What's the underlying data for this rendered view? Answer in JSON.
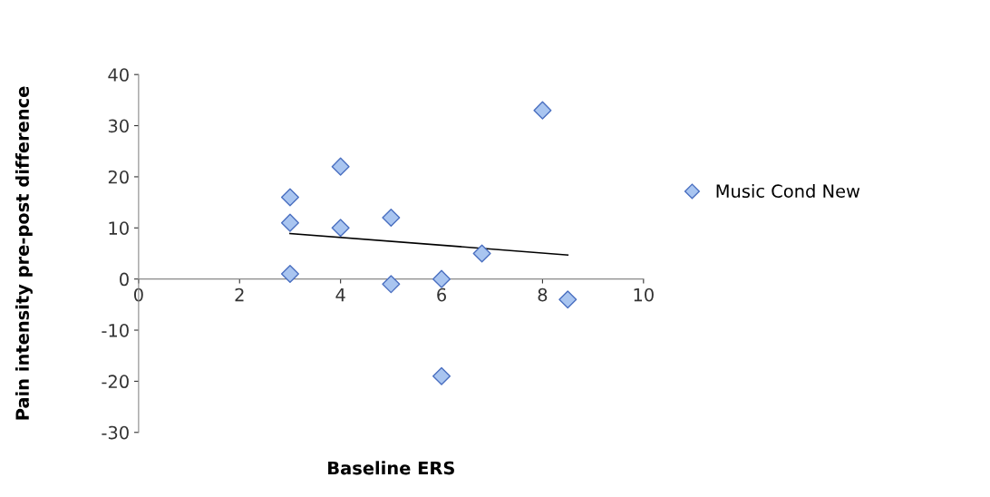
{
  "chart_data": {
    "type": "scatter",
    "xlabel": "Baseline ERS",
    "ylabel": "Pain intensity pre-post difference",
    "xlim": [
      0,
      10
    ],
    "xticks": [
      0,
      2,
      4,
      6,
      8,
      10
    ],
    "ylim": [
      -30,
      40
    ],
    "yticks": [
      -30,
      -20,
      -10,
      0,
      10,
      20,
      30,
      40
    ],
    "series": [
      {
        "name": "Music Cond New",
        "marker": "diamond",
        "color": "#a9c5f0",
        "x": [
          3,
          3,
          3,
          4,
          4,
          5,
          5,
          6,
          6,
          6.8,
          8,
          8.5
        ],
        "values": [
          16,
          11,
          1,
          22,
          10,
          12,
          -1,
          0,
          -19,
          5,
          33,
          -4
        ]
      },
      {
        "type": "line",
        "marker": "none",
        "color": "#000000",
        "x": [
          3,
          8.5
        ],
        "values": [
          8.9,
          4.7
        ]
      }
    ],
    "grid": false,
    "legend": "right"
  }
}
